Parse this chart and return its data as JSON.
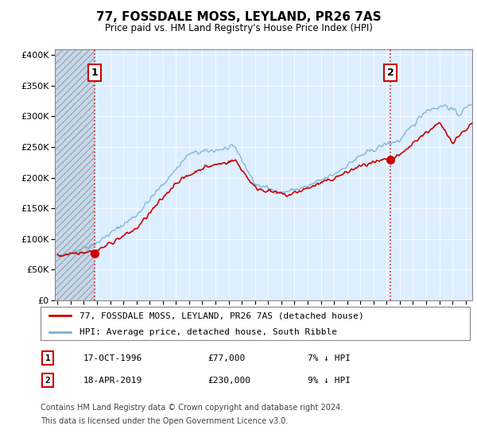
{
  "title": "77, FOSSDALE MOSS, LEYLAND, PR26 7AS",
  "subtitle": "Price paid vs. HM Land Registry's House Price Index (HPI)",
  "legend_label_red": "77, FOSSDALE MOSS, LEYLAND, PR26 7AS (detached house)",
  "legend_label_blue": "HPI: Average price, detached house, South Ribble",
  "transaction1_date": "17-OCT-1996",
  "transaction1_price": "£77,000",
  "transaction1_hpi": "7% ↓ HPI",
  "transaction2_date": "18-APR-2019",
  "transaction2_price": "£230,000",
  "transaction2_hpi": "9% ↓ HPI",
  "footnote1": "Contains HM Land Registry data © Crown copyright and database right 2024.",
  "footnote2": "This data is licensed under the Open Government Licence v3.0.",
  "red_color": "#cc0000",
  "blue_color": "#7bafd4",
  "plot_bg_color": "#ddeeff",
  "hatch_color": "#bbccdd",
  "marker1_x": 1996.8,
  "marker1_y": 77000,
  "marker2_x": 2019.3,
  "marker2_y": 230000,
  "vline1_x": 1996.8,
  "vline2_x": 2019.3,
  "ylim": [
    0,
    410000
  ],
  "xlim": [
    1993.8,
    2025.5
  ],
  "hatch_end_x": 1996.8
}
